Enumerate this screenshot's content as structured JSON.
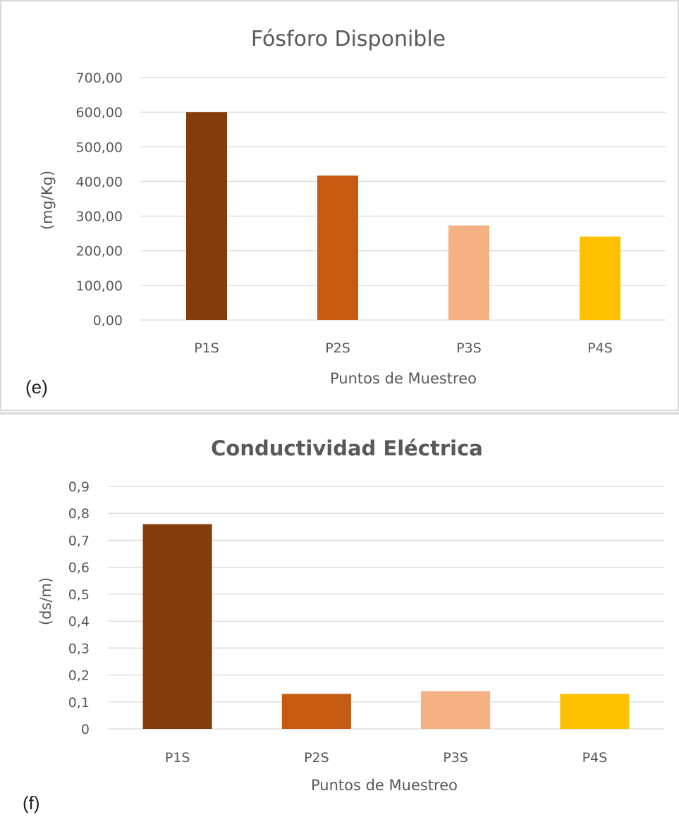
{
  "chart_data": [
    {
      "type": "bar",
      "title": "Fósforo Disponible",
      "panel_label": "(e)",
      "xlabel": "Puntos de Muestreo",
      "ylabel": "(mg/Kg)",
      "categories": [
        "P1S",
        "P2S",
        "P3S",
        "P4S"
      ],
      "values": [
        600.0,
        417.0,
        273.0,
        241.0
      ],
      "colors": [
        "#843c0c",
        "#c55a11",
        "#f4b183",
        "#ffc000"
      ],
      "ylim": [
        0,
        700
      ],
      "yticks": [
        "0,00",
        "100,00",
        "200,00",
        "300,00",
        "400,00",
        "500,00",
        "600,00",
        "700,00"
      ],
      "grid": true,
      "legend": "none"
    },
    {
      "type": "bar",
      "title": "Conductividad Eléctrica",
      "panel_label": "(f)",
      "xlabel": "Puntos de Muestreo",
      "ylabel": "(ds/m)",
      "categories": [
        "P1S",
        "P2S",
        "P3S",
        "P4S"
      ],
      "values": [
        0.76,
        0.13,
        0.14,
        0.13
      ],
      "colors": [
        "#843c0c",
        "#c55a11",
        "#f4b183",
        "#ffc000"
      ],
      "ylim": [
        0,
        0.9
      ],
      "yticks": [
        "0",
        "0,1",
        "0,2",
        "0,3",
        "0,4",
        "0,5",
        "0,6",
        "0,7",
        "0,8",
        "0,9"
      ],
      "grid": true,
      "legend": "none"
    }
  ]
}
